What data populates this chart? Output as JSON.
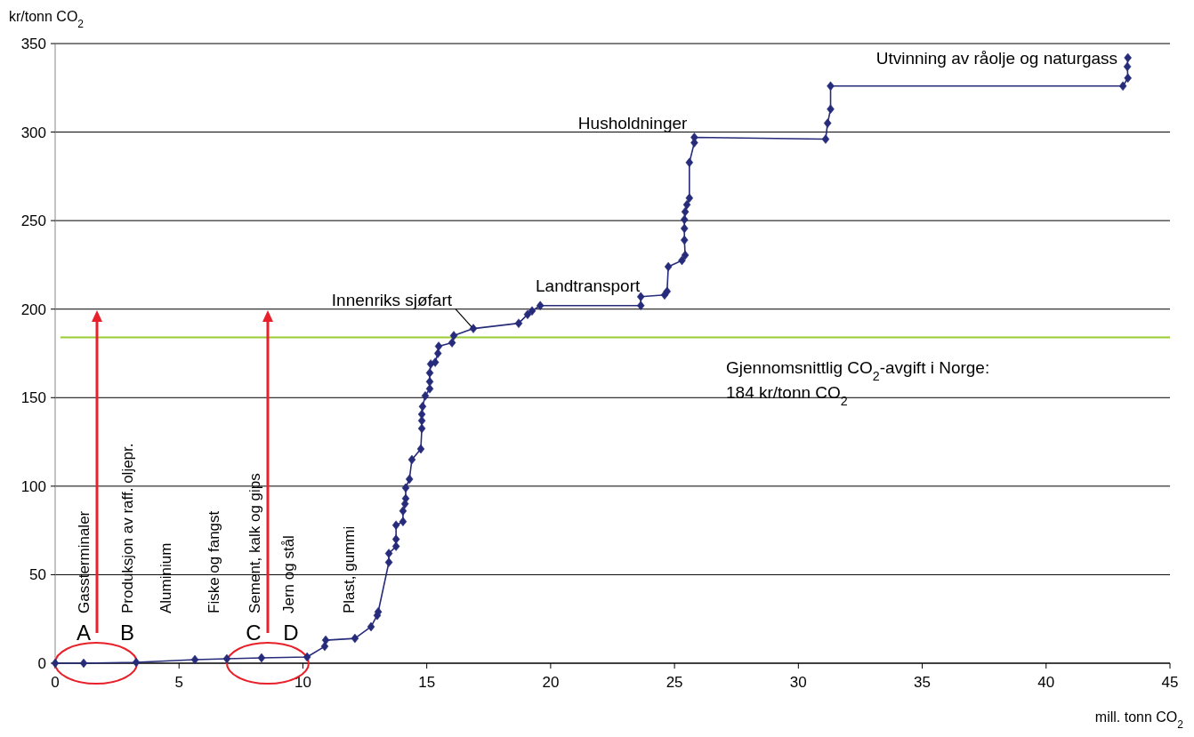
{
  "chart_data": {
    "type": "line",
    "ylabel": "kr/tonn CO$_{2}$",
    "xlabel": "mill. tonn CO$_{2}$",
    "x": [
      0,
      1.15,
      3.27,
      5.64,
      6.93,
      8.33,
      10.17,
      10.88,
      10.92,
      12.1,
      12.75,
      13.0,
      13.04,
      13.47,
      13.47,
      13.76,
      13.76,
      13.76,
      14.04,
      14.04,
      14.12,
      14.15,
      14.15,
      14.3,
      14.4,
      14.76,
      14.8,
      14.8,
      14.8,
      14.83,
      14.94,
      15.12,
      15.12,
      15.12,
      15.16,
      15.34,
      15.45,
      15.48,
      16.02,
      16.09,
      16.88,
      18.71,
      19.07,
      19.25,
      19.58,
      23.64,
      23.64,
      24.6,
      24.7,
      24.75,
      25.3,
      25.43,
      25.4,
      25.4,
      25.4,
      25.43,
      25.5,
      25.6,
      25.6,
      25.8,
      25.8,
      31.1,
      31.18,
      31.3,
      31.3,
      43.1,
      43.3,
      43.28,
      43.3
    ],
    "series": [
      {
        "color": "#262b7a",
        "values": [
          0,
          0,
          0.5,
          2,
          2.5,
          3,
          3.5,
          9.5,
          13,
          14,
          20.6,
          27,
          29,
          57,
          62,
          66,
          70,
          78,
          80,
          86,
          90,
          93,
          99,
          104,
          115,
          121,
          132.6,
          137,
          140.6,
          145,
          151,
          155,
          159,
          164,
          169,
          170,
          175,
          179,
          181,
          185,
          189,
          192,
          197,
          199,
          202,
          202,
          207,
          208,
          210,
          224,
          227.5,
          230.5,
          239,
          245.6,
          250.6,
          255,
          259,
          262.7,
          282.8,
          294,
          297,
          296,
          305,
          313,
          326,
          326,
          330.5,
          337,
          342
        ]
      }
    ],
    "xlim": [
      0,
      45
    ],
    "xticks": [
      0,
      5,
      10,
      15,
      20,
      25,
      30,
      35,
      40,
      45
    ],
    "ylim": [
      0,
      350
    ],
    "yticks": [
      0,
      50,
      100,
      150,
      200,
      250,
      300,
      350
    ],
    "grid": "y",
    "marker": "diamond",
    "line_style": "solid",
    "ref_lines": [
      {
        "axis": "y",
        "value": 184,
        "color": "#99cc33",
        "label": "Gjennomsnittlig CO$_{2}$-avgift i Norge:\n184 kr/tonn CO$_{2}$"
      }
    ],
    "annotations": [
      "Gassterminaler",
      "Produksjon av raff. oljepr.",
      "Aluminium",
      "Fiske og fangst",
      "Sement, kalk og gips",
      "Jern og stål",
      "Plast, gummi",
      "A",
      "B",
      "C",
      "D",
      {
        "text": "Innenriks sjøfart",
        "x": 16.88,
        "y": 189
      },
      {
        "text": "Landtransport",
        "x": 21.5,
        "y": 202
      },
      {
        "text": "Husholdninger",
        "x": 25.8,
        "y": 297
      },
      {
        "text": "Utvinning av råolje og naturgass",
        "x": 43.1,
        "y": 330.5
      }
    ]
  }
}
